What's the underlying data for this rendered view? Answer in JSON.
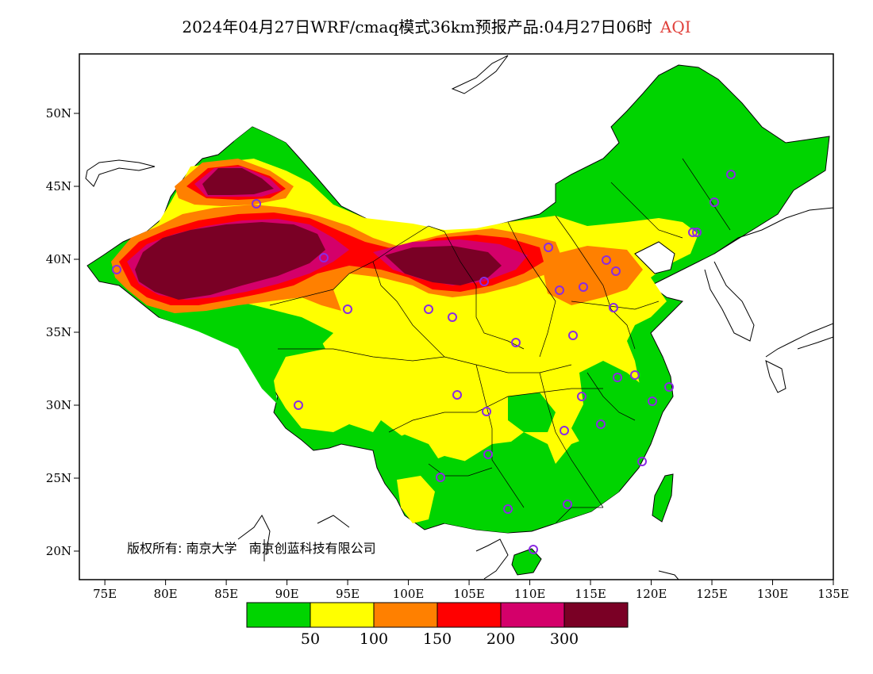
{
  "title": {
    "main": "2024年04月27日WRF/cmaq模式36km预报产品:04月27日06时",
    "variable": "AQI",
    "variable_color": "#e0403a"
  },
  "credit": {
    "label": "版权所有:",
    "org1": "南京大学",
    "org2": "南京创蓝科技有限公司"
  },
  "axes": {
    "lon_ticks": [
      "75E",
      "80E",
      "85E",
      "90E",
      "95E",
      "100E",
      "105E",
      "110E",
      "115E",
      "120E",
      "125E",
      "130E",
      "135E"
    ],
    "lat_ticks": [
      "50N",
      "45N",
      "40N",
      "35N",
      "30N",
      "25N",
      "20N"
    ]
  },
  "legend": {
    "colors": [
      "#00d400",
      "#ffff00",
      "#ff8000",
      "#ff0000",
      "#d4006a",
      "#7a0025"
    ],
    "labels": [
      "50",
      "100",
      "150",
      "200",
      "300"
    ]
  },
  "palette": {
    "good": "#00d400",
    "moderate": "#ffff00",
    "usg": "#ff8000",
    "unhealthy": "#ff0000",
    "very_unhealthy": "#d4006a",
    "hazardous": "#7a0025",
    "station_marker": "#8a2be2"
  }
}
